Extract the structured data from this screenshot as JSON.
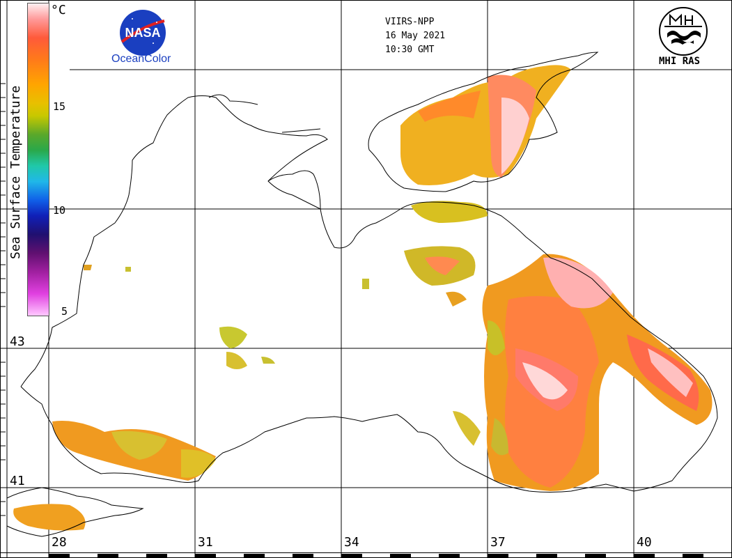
{
  "header": {
    "satellite": "VIIRS-NPP",
    "date": "16 May 2021",
    "time": "10:30 GMT"
  },
  "logos": {
    "nasa_text": "NASA",
    "oceancolor_text": "OceanColor",
    "mhi_text": "MHI RAS"
  },
  "colorbar": {
    "title": "Sea Surface Temperature",
    "unit": "°C",
    "ticks": [
      "15",
      "10",
      "5"
    ]
  },
  "latitude_labels": [
    "43",
    "41"
  ],
  "longitude_labels": [
    "28",
    "31",
    "34",
    "37",
    "40"
  ],
  "colors": {
    "warm": "#ff7a1a",
    "hot": "#ff4a3a",
    "cool": "#e8c000",
    "land_line": "#000000",
    "grid": "#000000"
  }
}
